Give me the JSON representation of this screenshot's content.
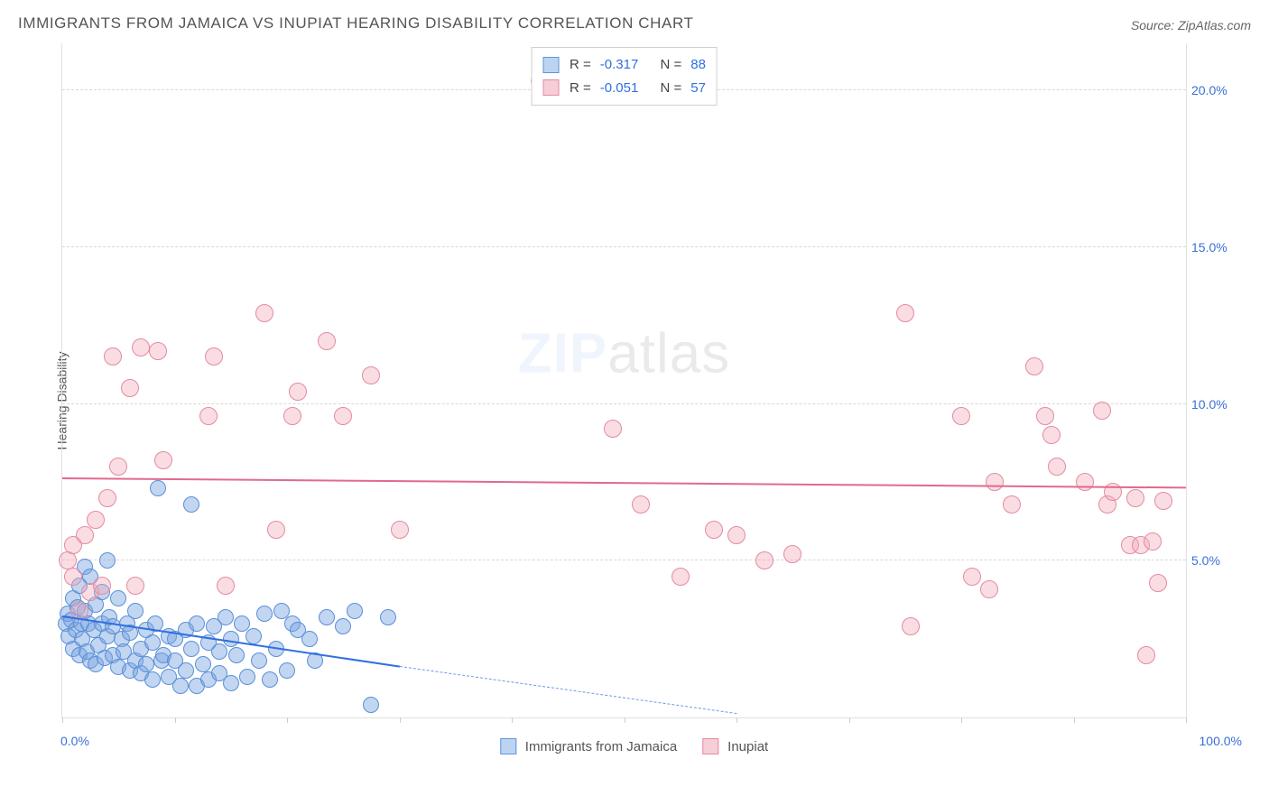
{
  "header": {
    "title": "IMMIGRANTS FROM JAMAICA VS INUPIAT HEARING DISABILITY CORRELATION CHART",
    "source": "Source: ZipAtlas.com"
  },
  "axes": {
    "ylabel": "Hearing Disability",
    "ymin": 0,
    "ymax": 21.5,
    "yticks": [
      5.0,
      10.0,
      15.0,
      20.0
    ],
    "ytick_labels": [
      "5.0%",
      "10.0%",
      "15.0%",
      "20.0%"
    ],
    "xmin": 0,
    "xmax": 100,
    "xticks": [
      0,
      10,
      20,
      30,
      40,
      50,
      60,
      70,
      80,
      90,
      100
    ],
    "x_left_label": "0.0%",
    "x_right_label": "100.0%",
    "grid_color": "#d8d8d8",
    "border_color": "#e0e0e0"
  },
  "watermark": {
    "prefix": "ZIP",
    "suffix": "atlas"
  },
  "legend_top": {
    "rows": [
      {
        "swatch_fill": "#bcd4f2",
        "swatch_stroke": "#5f93dd",
        "r_label": "R =",
        "r_value": "-0.317",
        "n_label": "N =",
        "n_value": "88"
      },
      {
        "swatch_fill": "#f7cdd7",
        "swatch_stroke": "#e48ba1",
        "r_label": "R =",
        "r_value": "-0.051",
        "n_label": "N =",
        "n_value": "57"
      }
    ]
  },
  "legend_bottom": {
    "items": [
      {
        "swatch_fill": "#bcd4f2",
        "swatch_stroke": "#5f93dd",
        "label": "Immigrants from Jamaica"
      },
      {
        "swatch_fill": "#f7cdd7",
        "swatch_stroke": "#e48ba1",
        "label": "Inupiat"
      }
    ]
  },
  "series": [
    {
      "id": "jamaica",
      "marker_fill": "rgba(120,165,225,0.45)",
      "marker_stroke": "#5a8fd8",
      "marker_r": 9,
      "trend": {
        "x0": 0,
        "y0": 3.2,
        "x1": 30,
        "y1": 1.6,
        "color": "#2f6fe0",
        "solid_until_x": 30,
        "dash_to_x": 60,
        "dash_to_y": 0.1
      },
      "points": [
        [
          0.3,
          3.0
        ],
        [
          0.5,
          3.3
        ],
        [
          0.6,
          2.6
        ],
        [
          0.8,
          3.1
        ],
        [
          1.0,
          3.8
        ],
        [
          1.0,
          2.2
        ],
        [
          1.2,
          2.8
        ],
        [
          1.4,
          3.5
        ],
        [
          1.5,
          2.0
        ],
        [
          1.5,
          4.2
        ],
        [
          1.7,
          3.0
        ],
        [
          1.8,
          2.5
        ],
        [
          2.0,
          3.4
        ],
        [
          2.0,
          4.8
        ],
        [
          2.2,
          2.1
        ],
        [
          2.3,
          3.0
        ],
        [
          2.5,
          4.5
        ],
        [
          2.5,
          1.8
        ],
        [
          2.8,
          2.8
        ],
        [
          3.0,
          3.6
        ],
        [
          3.0,
          1.7
        ],
        [
          3.2,
          2.3
        ],
        [
          3.5,
          3.0
        ],
        [
          3.5,
          4.0
        ],
        [
          3.8,
          1.9
        ],
        [
          4.0,
          2.6
        ],
        [
          4.0,
          5.0
        ],
        [
          4.2,
          3.2
        ],
        [
          4.5,
          2.0
        ],
        [
          4.5,
          2.9
        ],
        [
          5.0,
          1.6
        ],
        [
          5.0,
          3.8
        ],
        [
          5.3,
          2.5
        ],
        [
          5.5,
          2.1
        ],
        [
          5.8,
          3.0
        ],
        [
          6.0,
          1.5
        ],
        [
          6.0,
          2.7
        ],
        [
          6.5,
          3.4
        ],
        [
          6.5,
          1.8
        ],
        [
          7.0,
          2.2
        ],
        [
          7.0,
          1.4
        ],
        [
          7.5,
          2.8
        ],
        [
          7.5,
          1.7
        ],
        [
          8.0,
          2.4
        ],
        [
          8.0,
          1.2
        ],
        [
          8.3,
          3.0
        ],
        [
          8.5,
          7.3
        ],
        [
          8.8,
          1.8
        ],
        [
          9.0,
          2.0
        ],
        [
          9.5,
          2.6
        ],
        [
          9.5,
          1.3
        ],
        [
          10.0,
          1.8
        ],
        [
          10.0,
          2.5
        ],
        [
          10.5,
          1.0
        ],
        [
          11.0,
          2.8
        ],
        [
          11.0,
          1.5
        ],
        [
          11.5,
          6.8
        ],
        [
          11.5,
          2.2
        ],
        [
          12.0,
          1.0
        ],
        [
          12.0,
          3.0
        ],
        [
          12.5,
          1.7
        ],
        [
          13.0,
          2.4
        ],
        [
          13.0,
          1.2
        ],
        [
          13.5,
          2.9
        ],
        [
          14.0,
          1.4
        ],
        [
          14.0,
          2.1
        ],
        [
          14.5,
          3.2
        ],
        [
          15.0,
          1.1
        ],
        [
          15.0,
          2.5
        ],
        [
          15.5,
          2.0
        ],
        [
          16.0,
          3.0
        ],
        [
          16.5,
          1.3
        ],
        [
          17.0,
          2.6
        ],
        [
          17.5,
          1.8
        ],
        [
          18.0,
          3.3
        ],
        [
          18.5,
          1.2
        ],
        [
          19.0,
          2.2
        ],
        [
          19.5,
          3.4
        ],
        [
          20.0,
          1.5
        ],
        [
          20.5,
          3.0
        ],
        [
          21.0,
          2.8
        ],
        [
          22.0,
          2.5
        ],
        [
          22.5,
          1.8
        ],
        [
          23.5,
          3.2
        ],
        [
          25.0,
          2.9
        ],
        [
          26.0,
          3.4
        ],
        [
          27.5,
          0.4
        ],
        [
          29.0,
          3.2
        ]
      ]
    },
    {
      "id": "inupiat",
      "marker_fill": "rgba(240,170,185,0.40)",
      "marker_stroke": "#e48ba1",
      "marker_r": 10,
      "trend": {
        "x0": 0,
        "y0": 7.6,
        "x1": 100,
        "y1": 7.3,
        "color": "#e06a8c",
        "solid_until_x": 100
      },
      "points": [
        [
          0.5,
          5.0
        ],
        [
          1.0,
          5.5
        ],
        [
          1.0,
          4.5
        ],
        [
          1.5,
          3.4
        ],
        [
          2.0,
          5.8
        ],
        [
          2.5,
          4.0
        ],
        [
          3.0,
          6.3
        ],
        [
          3.5,
          4.2
        ],
        [
          4.0,
          7.0
        ],
        [
          4.5,
          11.5
        ],
        [
          5.0,
          8.0
        ],
        [
          6.0,
          10.5
        ],
        [
          6.5,
          4.2
        ],
        [
          7.0,
          11.8
        ],
        [
          8.5,
          11.7
        ],
        [
          9.0,
          8.2
        ],
        [
          13.0,
          9.6
        ],
        [
          13.5,
          11.5
        ],
        [
          14.5,
          4.2
        ],
        [
          18.0,
          12.9
        ],
        [
          19.0,
          6.0
        ],
        [
          20.5,
          9.6
        ],
        [
          21.0,
          10.4
        ],
        [
          23.5,
          12.0
        ],
        [
          25.0,
          9.6
        ],
        [
          27.5,
          10.9
        ],
        [
          30.0,
          6.0
        ],
        [
          42.5,
          20.3
        ],
        [
          49.0,
          9.2
        ],
        [
          51.5,
          6.8
        ],
        [
          55.0,
          4.5
        ],
        [
          58.0,
          6.0
        ],
        [
          60.0,
          5.8
        ],
        [
          62.5,
          5.0
        ],
        [
          65.0,
          5.2
        ],
        [
          75.5,
          2.9
        ],
        [
          75.0,
          12.9
        ],
        [
          80.0,
          9.6
        ],
        [
          81.0,
          4.5
        ],
        [
          82.5,
          4.1
        ],
        [
          83.0,
          7.5
        ],
        [
          84.5,
          6.8
        ],
        [
          86.5,
          11.2
        ],
        [
          87.5,
          9.6
        ],
        [
          88.0,
          9.0
        ],
        [
          88.5,
          8.0
        ],
        [
          91.0,
          7.5
        ],
        [
          92.5,
          9.8
        ],
        [
          93.0,
          6.8
        ],
        [
          93.5,
          7.2
        ],
        [
          95.0,
          5.5
        ],
        [
          95.5,
          7.0
        ],
        [
          96.0,
          5.5
        ],
        [
          97.0,
          5.6
        ],
        [
          97.5,
          4.3
        ],
        [
          96.5,
          2.0
        ],
        [
          98.0,
          6.9
        ]
      ]
    }
  ]
}
